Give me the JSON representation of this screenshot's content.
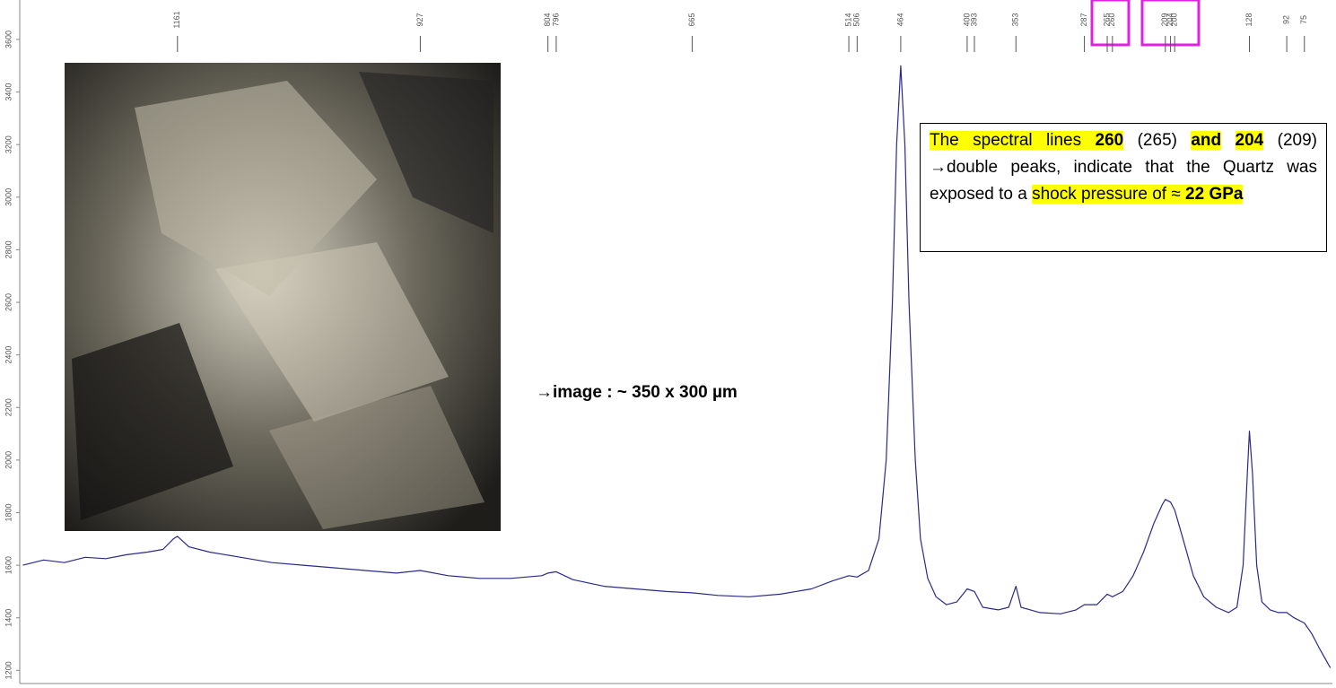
{
  "chart_data": {
    "type": "line",
    "x": [
      1310,
      1290,
      1270,
      1250,
      1230,
      1210,
      1190,
      1175,
      1165,
      1161,
      1150,
      1130,
      1100,
      1070,
      1040,
      1010,
      980,
      950,
      927,
      900,
      870,
      840,
      810,
      804,
      796,
      780,
      750,
      720,
      690,
      665,
      640,
      610,
      580,
      550,
      530,
      514,
      506,
      495,
      485,
      478,
      472,
      468,
      464,
      460,
      456,
      450,
      445,
      438,
      430,
      420,
      410,
      400,
      393,
      385,
      370,
      360,
      353,
      348,
      330,
      310,
      295,
      287,
      275,
      265,
      260,
      250,
      240,
      230,
      220,
      212,
      209,
      204,
      200,
      192,
      182,
      172,
      160,
      148,
      140,
      134,
      130,
      128,
      125,
      121,
      116,
      108,
      100,
      92,
      85,
      75,
      68,
      60,
      50
    ],
    "series": [
      {
        "color": "#2a2a8c",
        "values": [
          1600,
          1620,
          1610,
          1630,
          1625,
          1640,
          1650,
          1660,
          1700,
          1710,
          1670,
          1650,
          1630,
          1610,
          1600,
          1590,
          1580,
          1570,
          1580,
          1560,
          1550,
          1550,
          1560,
          1570,
          1575,
          1545,
          1520,
          1510,
          1500,
          1495,
          1485,
          1480,
          1490,
          1510,
          1540,
          1560,
          1555,
          1580,
          1700,
          2000,
          2600,
          3200,
          3500,
          3200,
          2600,
          2000,
          1700,
          1550,
          1480,
          1450,
          1460,
          1510,
          1500,
          1440,
          1430,
          1440,
          1520,
          1440,
          1420,
          1415,
          1430,
          1450,
          1450,
          1490,
          1480,
          1500,
          1560,
          1650,
          1760,
          1830,
          1850,
          1840,
          1810,
          1700,
          1560,
          1480,
          1440,
          1420,
          1440,
          1600,
          1950,
          2110,
          1950,
          1600,
          1460,
          1430,
          1420,
          1420,
          1400,
          1380,
          1340,
          1280,
          1210
        ]
      }
    ],
    "xlim": [
      1313,
      48
    ],
    "ylim": [
      1150,
      3750
    ],
    "yticks": [
      1200,
      1400,
      1600,
      1800,
      2000,
      2200,
      2400,
      2600,
      2800,
      3000,
      3200,
      3400,
      3600
    ],
    "peak_labels": [
      1161,
      927,
      804,
      796,
      665,
      514,
      506,
      464,
      400,
      393,
      353,
      287,
      265,
      260,
      209,
      204,
      200,
      128,
      92,
      75
    ],
    "image_caption": "→image :  ~ 350 x 300 µm",
    "annotation": [
      "The spectral lines ",
      "260",
      " (265) ",
      "and",
      "204",
      " (209) →double peaks, indicate that the Quartz was exposed to a ",
      "shock pressure of ≈ ",
      "22 GPa"
    ]
  }
}
